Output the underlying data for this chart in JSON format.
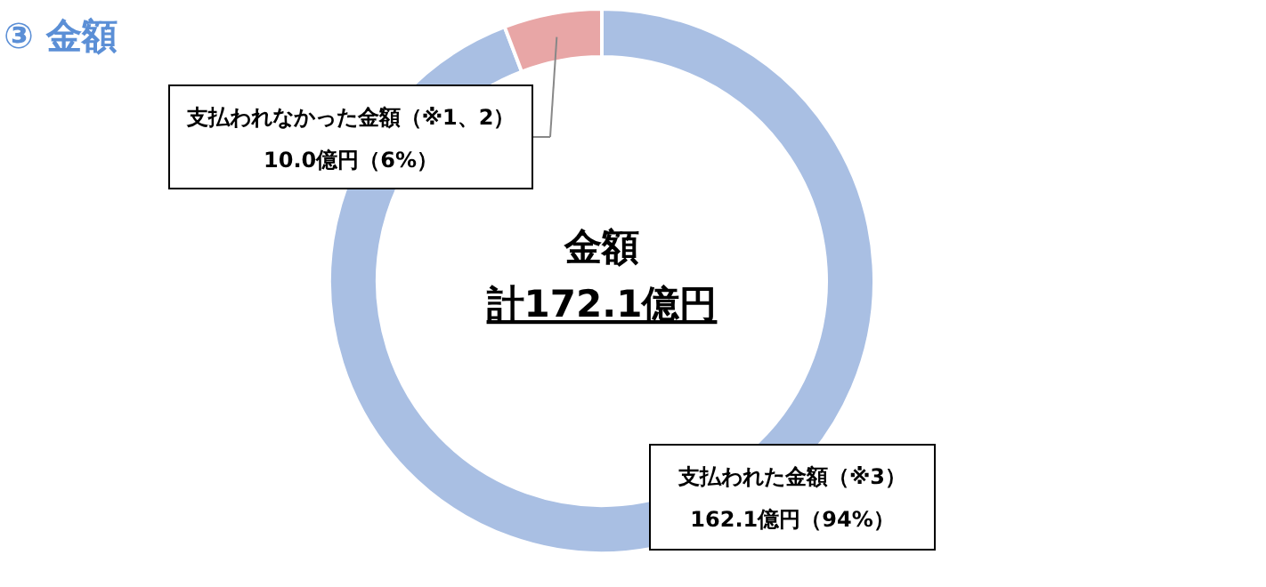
{
  "chart_data": {
    "type": "donut",
    "title": "③ 金額",
    "categories": [
      "支払われた金額（※3）",
      "支払われなかった金額（※1、2）"
    ],
    "values": [
      162.1,
      10.0
    ],
    "colors": [
      "#a9bfe3",
      "#e8a6a6"
    ],
    "value_labels": [
      "162.1億円（94%）",
      "10.0億円（6%）"
    ],
    "annotations": [
      "金額",
      "計172.1億円"
    ]
  }
}
